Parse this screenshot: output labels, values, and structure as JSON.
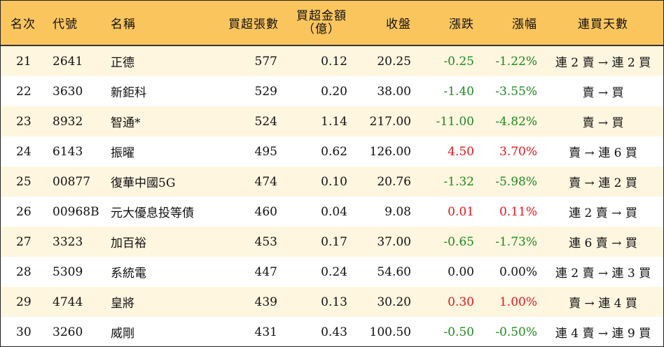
{
  "headers": {
    "rank": "名次",
    "code": "代號",
    "name": "名稱",
    "net_lots": "買超張數",
    "net_amount_line1": "買超金額",
    "net_amount_line2": "（億）",
    "close": "收盤",
    "change": "漲跌",
    "change_pct": "漲幅",
    "streak": "連買天數"
  },
  "colors": {
    "header_bg": "#fbc55e",
    "alt_row_bg": "#fff6e0",
    "up": "#e8141b",
    "down": "#1e8a1e"
  },
  "rows": [
    {
      "rank": "21",
      "code": "2641",
      "name": "正德",
      "net_lots": "577",
      "net_amount": "0.12",
      "close": "20.25",
      "change": "-0.25",
      "change_pct": "-1.22%",
      "streak": "連 2 賣 → 連 2 買",
      "dir": "neg"
    },
    {
      "rank": "22",
      "code": "3630",
      "name": "新鉅科",
      "net_lots": "529",
      "net_amount": "0.20",
      "close": "38.00",
      "change": "-1.40",
      "change_pct": "-3.55%",
      "streak": "賣 → 買",
      "dir": "neg"
    },
    {
      "rank": "23",
      "code": "8932",
      "name": "智通*",
      "net_lots": "524",
      "net_amount": "1.14",
      "close": "217.00",
      "change": "-11.00",
      "change_pct": "-4.82%",
      "streak": "賣 → 買",
      "dir": "neg"
    },
    {
      "rank": "24",
      "code": "6143",
      "name": "振曜",
      "net_lots": "495",
      "net_amount": "0.62",
      "close": "126.00",
      "change": "4.50",
      "change_pct": "3.70%",
      "streak": "賣 → 連 6 買",
      "dir": "pos"
    },
    {
      "rank": "25",
      "code": "00877",
      "name": "復華中國5G",
      "net_lots": "474",
      "net_amount": "0.10",
      "close": "20.76",
      "change": "-1.32",
      "change_pct": "-5.98%",
      "streak": "賣 → 連 2 買",
      "dir": "neg"
    },
    {
      "rank": "26",
      "code": "00968B",
      "name": "元大優息投等債",
      "net_lots": "460",
      "net_amount": "0.04",
      "close": "9.08",
      "change": "0.01",
      "change_pct": "0.11%",
      "streak": "連 2 賣 → 買",
      "dir": "pos"
    },
    {
      "rank": "27",
      "code": "3323",
      "name": "加百裕",
      "net_lots": "453",
      "net_amount": "0.17",
      "close": "37.00",
      "change": "-0.65",
      "change_pct": "-1.73%",
      "streak": "連 6 賣 → 買",
      "dir": "neg"
    },
    {
      "rank": "28",
      "code": "5309",
      "name": "系統電",
      "net_lots": "447",
      "net_amount": "0.24",
      "close": "54.60",
      "change": "0.00",
      "change_pct": "0.00%",
      "streak": "連 2 賣 → 連 3 買",
      "dir": "zero"
    },
    {
      "rank": "29",
      "code": "4744",
      "name": "皇將",
      "net_lots": "439",
      "net_amount": "0.13",
      "close": "30.20",
      "change": "0.30",
      "change_pct": "1.00%",
      "streak": "賣 → 連 4 買",
      "dir": "pos"
    },
    {
      "rank": "30",
      "code": "3260",
      "name": "威剛",
      "net_lots": "431",
      "net_amount": "0.43",
      "close": "100.50",
      "change": "-0.50",
      "change_pct": "-0.50%",
      "streak": "連 4 賣 → 連 9 買",
      "dir": "neg"
    }
  ]
}
